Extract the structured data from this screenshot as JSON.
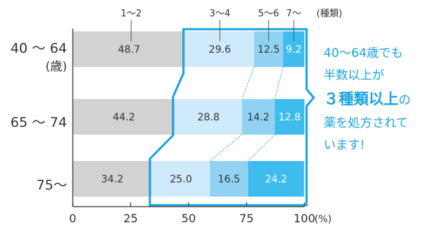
{
  "chart_data": {
    "type": "bar",
    "orientation": "horizontal",
    "stacked": true,
    "categories": [
      "40 ～ 64",
      "65 ～ 74",
      "75～"
    ],
    "category_sublabels": [
      "(歳)",
      "",
      ""
    ],
    "series": [
      {
        "name": "1～2",
        "values": [
          48.7,
          44.2,
          34.2
        ]
      },
      {
        "name": "3～4",
        "values": [
          29.6,
          28.8,
          25.0
        ]
      },
      {
        "name": "5～6",
        "values": [
          12.5,
          14.2,
          16.5
        ]
      },
      {
        "name": "7～",
        "values": [
          9.2,
          12.8,
          24.2
        ]
      }
    ],
    "legend_suffix": "(種類)",
    "xlim": [
      0,
      100
    ],
    "xticks": [
      0,
      25,
      50,
      75,
      100
    ],
    "x_unit": "(%)",
    "grid": false,
    "colors": {
      "series": [
        "#d2d2d2",
        "#cfeafb",
        "#91d2f3",
        "#3fbcee"
      ],
      "highlight": "#1aa3e0",
      "label_dark": "#333333",
      "label_light": "#ffffff"
    },
    "label_colors": [
      "dark",
      "dark",
      "dark",
      "light"
    ]
  },
  "callout": {
    "line1": "40～64歳でも",
    "line2": "半数以上が",
    "line3_strong": "３種類以上",
    "line3_suffix": "の",
    "line4": "薬を処方されて",
    "line5": "います!"
  }
}
